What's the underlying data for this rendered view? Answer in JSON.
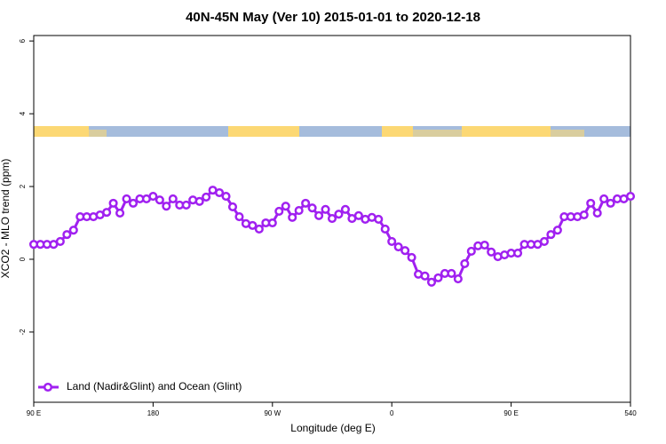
{
  "chart_data": {
    "type": "line",
    "title": "40N-45N May (Ver 10)   2015-01-01 to 2020-12-18",
    "x_label": "Longitude (deg E)",
    "y_label": "XCO2 - MLO trend (ppm)",
    "x": [
      90,
      95,
      100,
      105,
      110,
      115,
      120,
      125,
      130,
      135,
      140,
      145,
      150,
      155,
      160,
      165,
      170,
      175,
      180,
      185,
      190,
      195,
      200,
      205,
      210,
      215,
      220,
      225,
      230,
      235,
      240,
      245,
      250,
      255,
      260,
      265,
      270,
      275,
      280,
      285,
      290,
      295,
      300,
      305,
      310,
      315,
      320,
      325,
      330,
      335,
      340,
      345,
      350,
      355,
      360,
      365,
      370,
      375,
      380,
      385,
      390,
      395,
      400,
      405,
      410,
      415,
      420,
      425,
      430,
      435,
      440,
      445,
      450,
      455,
      460,
      465,
      470,
      475,
      480,
      485,
      490,
      495,
      500,
      505,
      510,
      515,
      520,
      525,
      530,
      535,
      540
    ],
    "series": [
      {
        "name": "Land (Nadir&Glint) and Ocean (Glint)",
        "color": "#a020f0",
        "values": [
          0.41,
          0.41,
          0.41,
          0.41,
          0.49,
          0.68,
          0.8,
          1.17,
          1.17,
          1.17,
          1.22,
          1.29,
          1.54,
          1.27,
          1.66,
          1.54,
          1.66,
          1.66,
          1.73,
          1.63,
          1.46,
          1.66,
          1.49,
          1.49,
          1.63,
          1.59,
          1.71,
          1.9,
          1.83,
          1.73,
          1.44,
          1.17,
          0.98,
          0.93,
          0.83,
          1.0,
          1.0,
          1.32,
          1.46,
          1.15,
          1.34,
          1.54,
          1.41,
          1.2,
          1.37,
          1.12,
          1.24,
          1.37,
          1.12,
          1.2,
          1.1,
          1.15,
          1.1,
          0.83,
          0.49,
          0.34,
          0.24,
          0.05,
          -0.41,
          -0.46,
          -0.63,
          -0.51,
          -0.39,
          -0.39,
          -0.54,
          -0.12,
          0.22,
          0.37,
          0.39,
          0.2,
          0.07,
          0.12,
          0.17,
          0.17,
          0.41,
          0.41,
          0.41,
          0.49,
          0.68,
          0.8,
          1.17,
          1.17,
          1.17,
          1.22,
          1.54,
          1.27,
          1.66,
          1.54,
          1.66,
          1.66,
          1.73
        ]
      }
    ],
    "xlim": [
      90,
      540
    ],
    "xticks": [
      {
        "value": 90,
        "label": "90 E"
      },
      180,
      {
        "value": 270,
        "label": "90 W"
      },
      {
        "value": 360,
        "label": "0"
      },
      {
        "value": 450,
        "label": "90 E"
      },
      540
    ],
    "ylim": [
      -3.93,
      6.15
    ],
    "yticks": [
      -2,
      0,
      2,
      4,
      6
    ],
    "legend": "bottom-left"
  }
}
